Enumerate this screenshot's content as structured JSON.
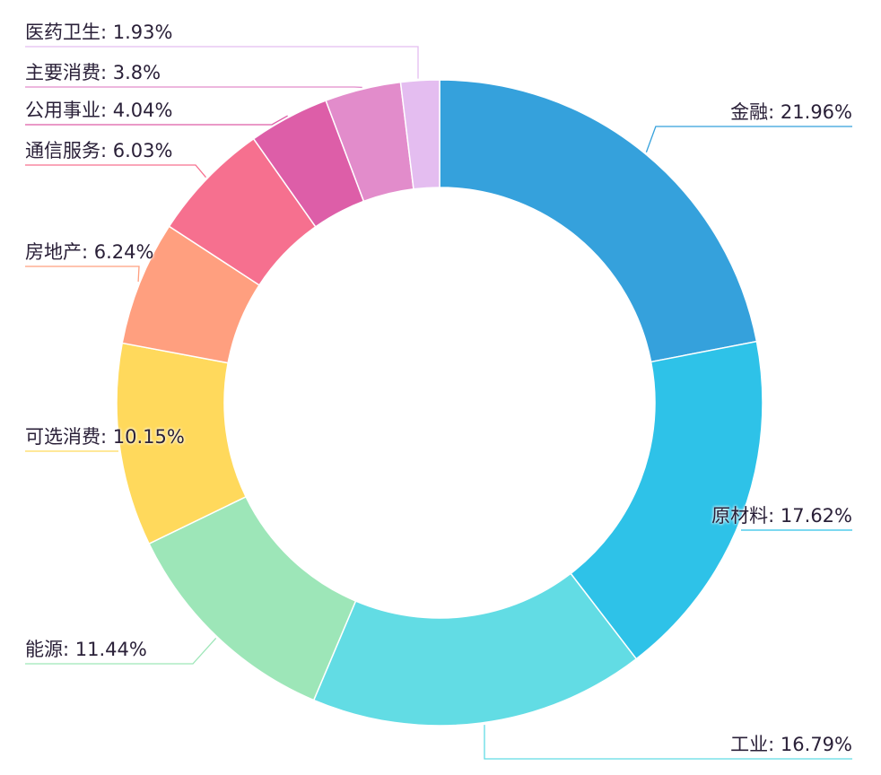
{
  "chart_data": {
    "type": "pie",
    "subtype": "donut",
    "title": "",
    "start_angle": "12 o'clock, clockwise",
    "categories": [
      "金融",
      "原材料",
      "工业",
      "能源",
      "可选消费",
      "房地产",
      "通信服务",
      "公用事业",
      "主要消费",
      "医药卫生"
    ],
    "values": [
      21.96,
      17.62,
      16.79,
      11.44,
      10.15,
      6.24,
      6.03,
      4.04,
      3.8,
      1.93
    ],
    "unit": "%",
    "colors": [
      "#35a1dc",
      "#2ec2e8",
      "#62dce4",
      "#9de6b8",
      "#ffd95c",
      "#ff9f7f",
      "#f6708f",
      "#dd5ea8",
      "#e28ccb",
      "#e4bdf0"
    ],
    "labels": [
      "金融: 21.96%",
      "原材料: 17.62%",
      "工业: 16.79%",
      "能源: 11.44%",
      "可选消费: 10.15%",
      "房地产: 6.24%",
      "通信服务: 6.03%",
      "公用事业: 4.04%",
      "主要消费: 3.8%",
      "医药卫生: 1.93%"
    ],
    "label_position": "outside with leader lines",
    "legend": "none"
  }
}
